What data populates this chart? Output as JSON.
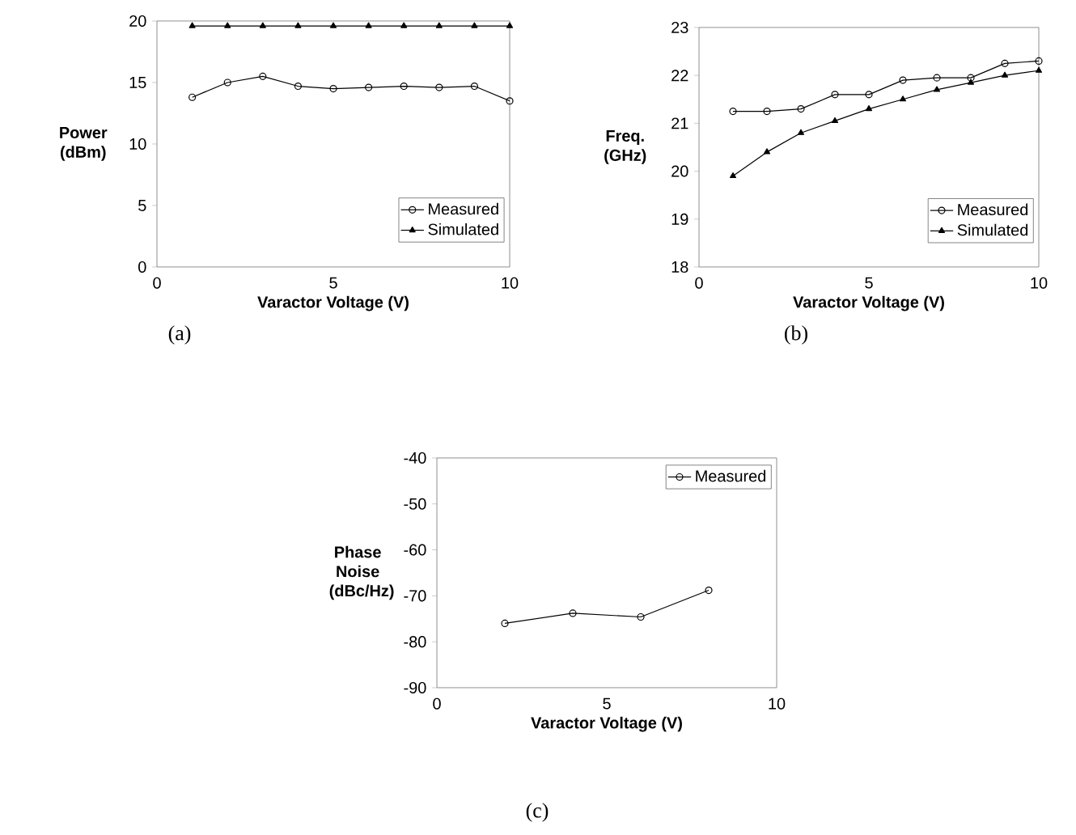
{
  "chart_data": [
    {
      "type": "line",
      "xlabel": "Varactor Voltage (V)",
      "ylabel": "Power (dBm)",
      "x": [
        1,
        2,
        3,
        4,
        5,
        6,
        7,
        8,
        9,
        10
      ],
      "xlim": [
        0,
        10
      ],
      "xticks": [
        0,
        5,
        10
      ],
      "ylim": [
        0,
        20
      ],
      "yticks": [
        0,
        5,
        10,
        15,
        20
      ],
      "legend": "bottom right",
      "annotations": [
        "(a)"
      ],
      "series": [
        {
          "name": "Measured",
          "color": "#000000",
          "marker": "circle",
          "values": [
            13.8,
            15.0,
            15.5,
            14.7,
            14.5,
            14.6,
            14.7,
            14.6,
            14.7,
            13.5
          ]
        },
        {
          "name": "Simulated",
          "color": "#000000",
          "marker": "triangle",
          "values": [
            19.6,
            19.6,
            19.6,
            19.6,
            19.6,
            19.6,
            19.6,
            19.6,
            19.6,
            19.6
          ]
        }
      ]
    },
    {
      "type": "line",
      "xlabel": "Varactor Voltage (V)",
      "ylabel": "Freq. (GHz)",
      "x": [
        1,
        2,
        3,
        4,
        5,
        6,
        7,
        8,
        9,
        10
      ],
      "xlim": [
        0,
        10
      ],
      "xticks": [
        0,
        5,
        10
      ],
      "ylim": [
        18,
        23
      ],
      "yticks": [
        18,
        19,
        20,
        21,
        22,
        23
      ],
      "legend": "bottom right",
      "annotations": [
        "(b)"
      ],
      "series": [
        {
          "name": "Measured",
          "color": "#000000",
          "marker": "circle",
          "values": [
            21.25,
            21.25,
            21.3,
            21.6,
            21.6,
            21.9,
            21.95,
            21.95,
            22.25,
            22.3
          ]
        },
        {
          "name": "Simulated",
          "color": "#000000",
          "marker": "triangle",
          "values": [
            19.9,
            20.4,
            20.8,
            21.05,
            21.3,
            21.5,
            21.7,
            21.85,
            22.0,
            22.1
          ]
        }
      ]
    },
    {
      "type": "line",
      "xlabel": "Varactor Voltage (V)",
      "ylabel": "Phase Noise (dBc/Hz)",
      "x": [
        2,
        4,
        6,
        8
      ],
      "xlim": [
        0,
        10
      ],
      "xticks": [
        0,
        5,
        10
      ],
      "ylim": [
        -90,
        -40
      ],
      "yticks": [
        -90,
        -80,
        -70,
        -60,
        -50,
        -40
      ],
      "legend": "top right",
      "annotations": [
        "(c)"
      ],
      "series": [
        {
          "name": "Measured",
          "color": "#000000",
          "marker": "circle",
          "values": [
            -76,
            -73.8,
            -74.6,
            -68.8
          ]
        }
      ]
    }
  ]
}
